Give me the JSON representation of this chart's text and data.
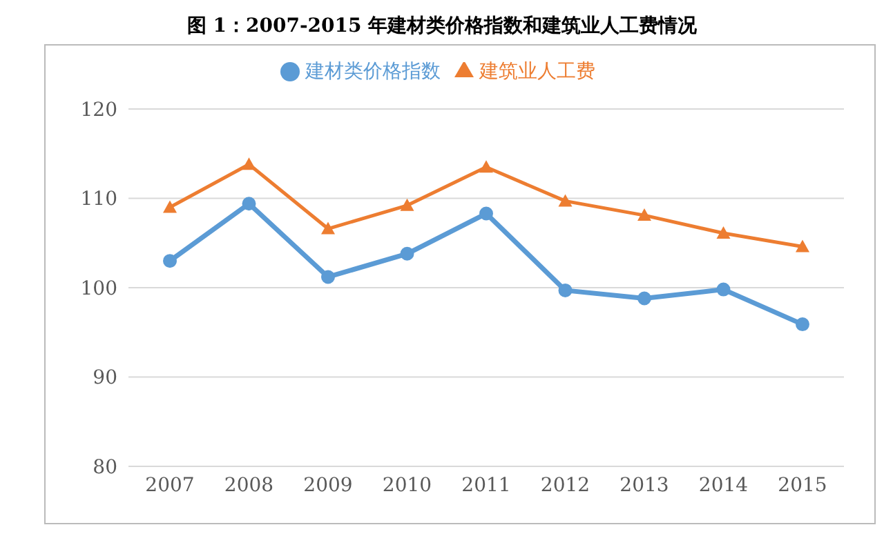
{
  "chart_data": {
    "type": "line",
    "title": "图 1：2007-2015 年建材类价格指数和建筑业人工费情况",
    "categories": [
      "2007",
      "2008",
      "2009",
      "2010",
      "2011",
      "2012",
      "2013",
      "2014",
      "2015"
    ],
    "series": [
      {
        "name": "建材类价格指数",
        "color": "#5b9bd5",
        "marker": "circle",
        "values": [
          103.0,
          109.4,
          101.2,
          103.8,
          108.3,
          99.7,
          98.8,
          99.8,
          95.9
        ]
      },
      {
        "name": "建筑业人工费",
        "color": "#ed7d31",
        "marker": "triangle",
        "values": [
          109.0,
          113.8,
          106.6,
          109.2,
          113.5,
          109.7,
          108.1,
          106.1,
          104.6
        ]
      }
    ],
    "ylim": [
      80,
      120
    ],
    "yticks": [
      80,
      90,
      100,
      110,
      120
    ],
    "grid": "y",
    "legend": "top"
  }
}
